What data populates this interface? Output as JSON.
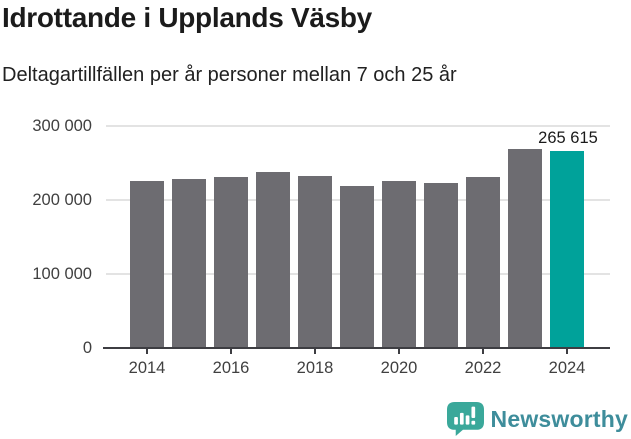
{
  "header": {
    "title": "Idrottande i Upplands Väsby",
    "subtitle": "Deltagartillfällen per år personer mellan 7 och 25 år"
  },
  "chart_data": {
    "type": "bar",
    "title": "Idrottande i Upplands Väsby",
    "subtitle": "Deltagartillfällen per år personer mellan 7 och 25 år",
    "categories": [
      "2014",
      "2015",
      "2016",
      "2017",
      "2018",
      "2019",
      "2020",
      "2021",
      "2022",
      "2023",
      "2024"
    ],
    "values": [
      226000,
      228000,
      231000,
      238000,
      232000,
      219000,
      226000,
      223000,
      231000,
      269000,
      265615
    ],
    "values_note": "values estimated from bar heights except 2024 which is labeled",
    "highlight_index": 10,
    "highlight_value_label": "265 615",
    "xlabel": "",
    "ylabel": "",
    "ylim": [
      0,
      300000
    ],
    "yticks": [
      {
        "value": 0,
        "label": "0"
      },
      {
        "value": 100000,
        "label": "100 000"
      },
      {
        "value": 200000,
        "label": "200 000"
      },
      {
        "value": 300000,
        "label": "300 000"
      }
    ],
    "xtick_indices": [
      0,
      2,
      4,
      6,
      8,
      10
    ],
    "xtick_labels": [
      "2014",
      "2016",
      "2018",
      "2020",
      "2022",
      "2024"
    ],
    "grid": true,
    "legend": "none",
    "bar_color": "#6d6c71",
    "highlight_color": "#00a29a"
  },
  "footer": {
    "brand": "Newsworthy",
    "brand_color": "#3e8d9b",
    "logo_color": "#3aa89a",
    "logo_icon": "speech-bubble-bar-chart-icon"
  }
}
